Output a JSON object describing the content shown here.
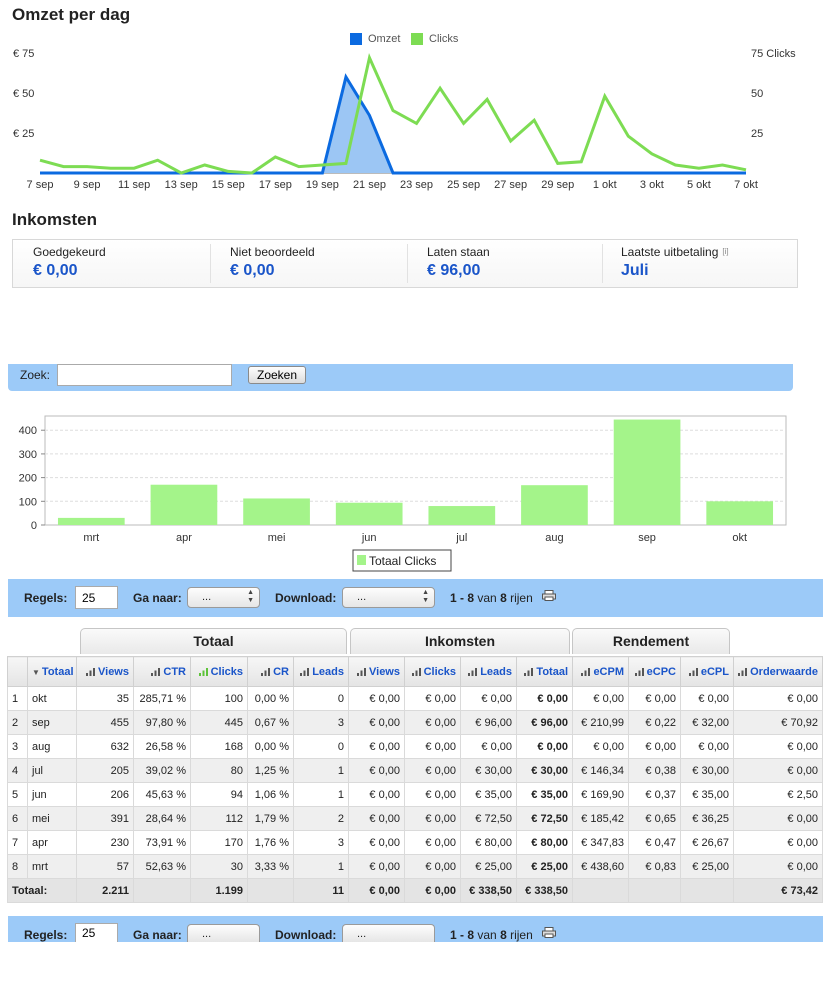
{
  "omzet_section": {
    "title": "Omzet per dag",
    "legend": [
      {
        "name": "Omzet",
        "color": "#0b6ae0"
      },
      {
        "name": "Clicks",
        "color": "#7ddc53"
      }
    ],
    "y_left_ticks": [
      "€ 75",
      "€ 50",
      "€ 25"
    ],
    "y_right_ticks": [
      "75 Clicks",
      "50",
      "25"
    ],
    "x_ticks": [
      "7 sep",
      "9 sep",
      "11 sep",
      "13 sep",
      "15 sep",
      "17 sep",
      "19 sep",
      "21 sep",
      "23 sep",
      "25 sep",
      "27 sep",
      "29 sep",
      "1 okt",
      "3 okt",
      "5 okt",
      "7 okt"
    ]
  },
  "income_section": {
    "title": "Inkomsten",
    "cells": [
      {
        "label": "Goedgekeurd",
        "value": "€ 0,00"
      },
      {
        "label": "Niet beoordeeld",
        "value": "€ 0,00"
      },
      {
        "label": "Laten staan",
        "value": "€ 96,00"
      },
      {
        "label": "Laatste uitbetaling",
        "value": "Juli"
      }
    ],
    "info_icon": "info-icon"
  },
  "search": {
    "label": "Zoek:",
    "value": "",
    "button_label": "Zoeken"
  },
  "controls": {
    "rows_label": "Regels:",
    "rows_value": "25",
    "goto_label": "Ga naar:",
    "goto_value": "...",
    "download_label": "Download:",
    "download_value": "...",
    "range": "1 - 8",
    "of_text": "van",
    "total_rows": "8",
    "rows_word": "rijen",
    "print_icon": "printer-icon"
  },
  "table": {
    "groups": [
      "Totaal",
      "Inkomsten",
      "Rendement"
    ],
    "headers": [
      "Totaal",
      "Views",
      "CTR",
      "Clicks",
      "CR",
      "Leads",
      "Views",
      "Clicks",
      "Leads",
      "Totaal",
      "eCPM",
      "eCPC",
      "eCPL",
      "Orderwaarde"
    ],
    "rows": [
      [
        "1",
        "okt",
        "35",
        "285,71 %",
        "100",
        "0,00 %",
        "0",
        "€ 0,00",
        "€ 0,00",
        "€ 0,00",
        "€ 0,00",
        "€ 0,00",
        "€ 0,00",
        "€ 0,00",
        "€ 0,00"
      ],
      [
        "2",
        "sep",
        "455",
        "97,80 %",
        "445",
        "0,67 %",
        "3",
        "€ 0,00",
        "€ 0,00",
        "€ 96,00",
        "€ 96,00",
        "€ 210,99",
        "€ 0,22",
        "€ 32,00",
        "€ 70,92"
      ],
      [
        "3",
        "aug",
        "632",
        "26,58 %",
        "168",
        "0,00 %",
        "0",
        "€ 0,00",
        "€ 0,00",
        "€ 0,00",
        "€ 0,00",
        "€ 0,00",
        "€ 0,00",
        "€ 0,00",
        "€ 0,00"
      ],
      [
        "4",
        "jul",
        "205",
        "39,02 %",
        "80",
        "1,25 %",
        "1",
        "€ 0,00",
        "€ 0,00",
        "€ 30,00",
        "€ 30,00",
        "€ 146,34",
        "€ 0,38",
        "€ 30,00",
        "€ 0,00"
      ],
      [
        "5",
        "jun",
        "206",
        "45,63 %",
        "94",
        "1,06 %",
        "1",
        "€ 0,00",
        "€ 0,00",
        "€ 35,00",
        "€ 35,00",
        "€ 169,90",
        "€ 0,37",
        "€ 35,00",
        "€ 2,50"
      ],
      [
        "6",
        "mei",
        "391",
        "28,64 %",
        "112",
        "1,79 %",
        "2",
        "€ 0,00",
        "€ 0,00",
        "€ 72,50",
        "€ 72,50",
        "€ 185,42",
        "€ 0,65",
        "€ 36,25",
        "€ 0,00"
      ],
      [
        "7",
        "apr",
        "230",
        "73,91 %",
        "170",
        "1,76 %",
        "3",
        "€ 0,00",
        "€ 0,00",
        "€ 80,00",
        "€ 80,00",
        "€ 347,83",
        "€ 0,47",
        "€ 26,67",
        "€ 0,00"
      ],
      [
        "8",
        "mrt",
        "57",
        "52,63 %",
        "30",
        "3,33 %",
        "1",
        "€ 0,00",
        "€ 0,00",
        "€ 25,00",
        "€ 25,00",
        "€ 438,60",
        "€ 0,83",
        "€ 25,00",
        "€ 0,00"
      ]
    ],
    "totals": [
      "Totaal:",
      "",
      "2.211",
      "",
      "1.199",
      "",
      "11",
      "€ 0,00",
      "€ 0,00",
      "€ 338,50",
      "€ 338,50",
      "",
      "",
      "",
      "€ 73,42"
    ]
  },
  "chart_data": [
    {
      "type": "line",
      "x": [
        "7 sep",
        "8 sep",
        "9 sep",
        "10 sep",
        "11 sep",
        "12 sep",
        "13 sep",
        "14 sep",
        "15 sep",
        "16 sep",
        "17 sep",
        "18 sep",
        "19 sep",
        "20 sep",
        "21 sep",
        "22 sep",
        "23 sep",
        "24 sep",
        "25 sep",
        "26 sep",
        "27 sep",
        "28 sep",
        "29 sep",
        "30 sep",
        "1 okt",
        "2 okt",
        "3 okt",
        "4 okt",
        "5 okt",
        "6 okt",
        "7 okt"
      ],
      "series": [
        {
          "name": "Omzet",
          "axis": "left",
          "area": true,
          "values": [
            0,
            0,
            0,
            0,
            0,
            0,
            0,
            0,
            0,
            0,
            0,
            0,
            0,
            60,
            36,
            0,
            0,
            0,
            0,
            0,
            0,
            0,
            0,
            0,
            0,
            0,
            0,
            0,
            0,
            0,
            0
          ]
        },
        {
          "name": "Clicks",
          "axis": "right",
          "values": [
            8,
            4,
            4,
            3,
            3,
            8,
            0,
            5,
            1,
            0,
            10,
            4,
            5,
            6,
            72,
            39,
            31,
            53,
            31,
            46,
            20,
            33,
            6,
            7,
            48,
            23,
            12,
            5,
            3,
            5,
            2
          ]
        }
      ],
      "y_left_range": [
        0,
        75
      ],
      "y_right_range": [
        0,
        75
      ],
      "grid": false,
      "legend": "top-center"
    },
    {
      "type": "bar",
      "categories": [
        "mrt",
        "apr",
        "mei",
        "jun",
        "jul",
        "aug",
        "sep",
        "okt"
      ],
      "series": [
        {
          "name": "Totaal Clicks",
          "values": [
            30,
            170,
            112,
            94,
            80,
            168,
            445,
            100
          ]
        }
      ],
      "yticks": [
        "0",
        "100",
        "200",
        "300",
        "400"
      ],
      "ylim": [
        0,
        460
      ],
      "grid": true,
      "legend": "bottom-center",
      "color": "#a4f48a"
    }
  ]
}
